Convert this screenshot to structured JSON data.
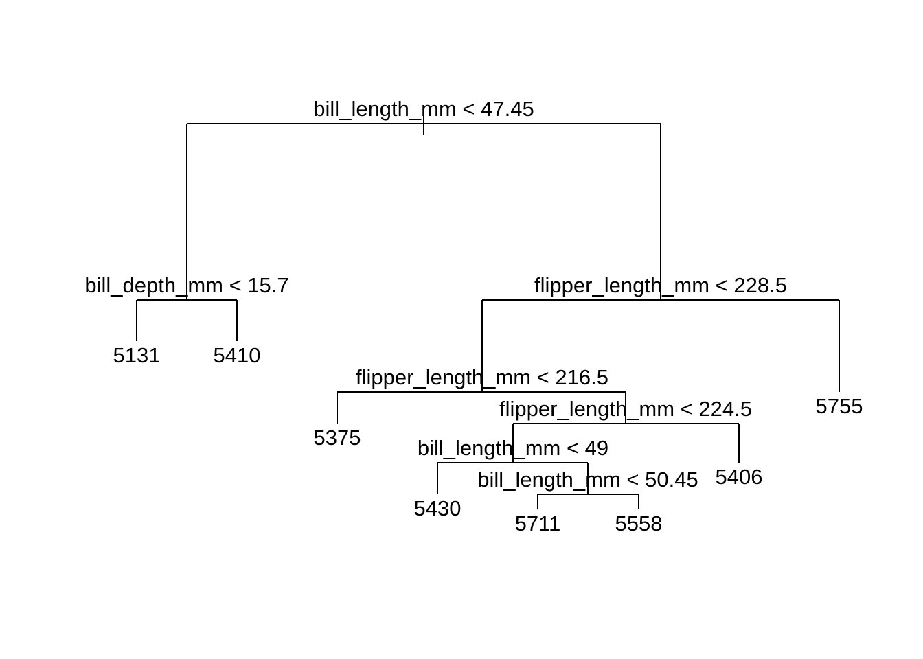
{
  "tree": {
    "line_color": "#000000",
    "background": "#ffffff",
    "nodes": [
      {
        "id": "n1",
        "label": "bill_length_mm < 47.45",
        "children": [
          "n2",
          "n3"
        ]
      },
      {
        "id": "n2",
        "label": "bill_depth_mm < 15.7",
        "children": [
          "l5131",
          "l5410"
        ]
      },
      {
        "id": "l5131",
        "leaf": true,
        "value": "5131"
      },
      {
        "id": "l5410",
        "leaf": true,
        "value": "5410"
      },
      {
        "id": "n3",
        "label": "flipper_length_mm < 228.5",
        "children": [
          "n4",
          "l5755"
        ]
      },
      {
        "id": "n4",
        "label": "flipper_length_mm < 216.5",
        "children": [
          "l5375",
          "n5"
        ]
      },
      {
        "id": "l5375",
        "leaf": true,
        "value": "5375"
      },
      {
        "id": "n5",
        "label": "flipper_length_mm < 224.5",
        "children": [
          "n6",
          "l5406"
        ]
      },
      {
        "id": "n6",
        "label": "bill_length_mm < 49",
        "children": [
          "l5430",
          "n7"
        ]
      },
      {
        "id": "l5430",
        "leaf": true,
        "value": "5430"
      },
      {
        "id": "n7",
        "label": "bill_length_mm < 50.45",
        "children": [
          "l5711",
          "l5558"
        ]
      },
      {
        "id": "l5711",
        "leaf": true,
        "value": "5711"
      },
      {
        "id": "l5558",
        "leaf": true,
        "value": "5558"
      },
      {
        "id": "l5406",
        "leaf": true,
        "value": "5406"
      },
      {
        "id": "l5755",
        "leaf": true,
        "value": "5755"
      }
    ]
  }
}
